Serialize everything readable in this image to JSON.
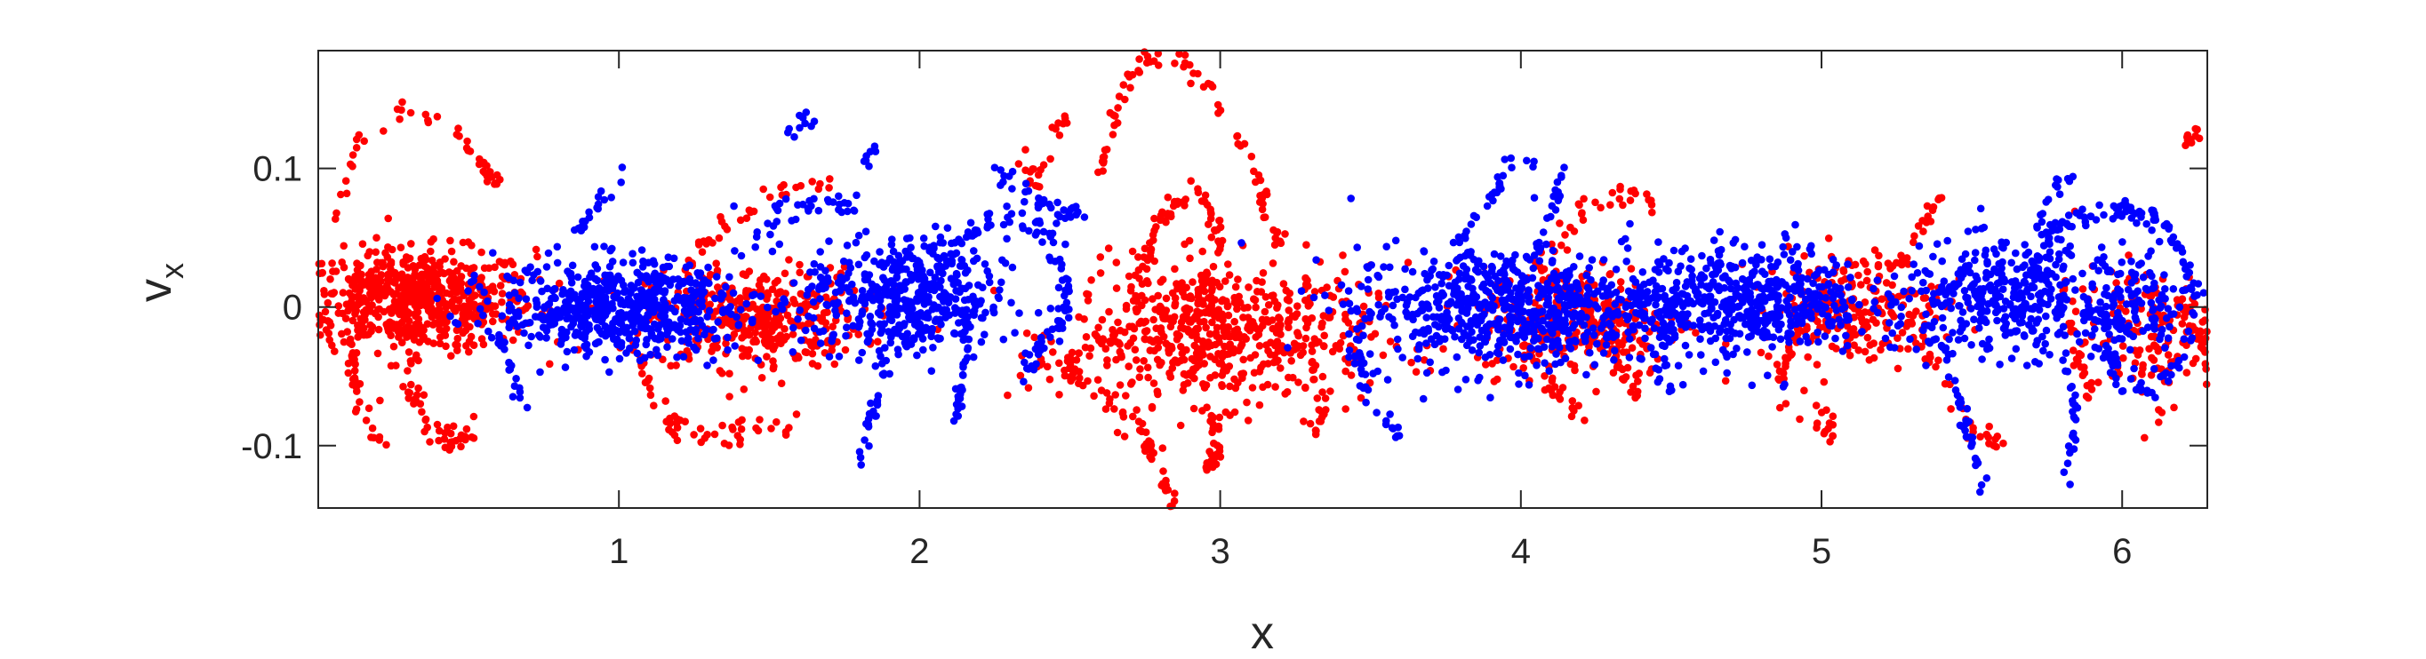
{
  "chart_data": {
    "type": "scatter",
    "xlabel": "x",
    "ylabel_main": "v",
    "ylabel_sub": "x",
    "xlim": [
      0,
      6.2832
    ],
    "ylim": [
      -0.145,
      0.185
    ],
    "xticks": [
      1,
      2,
      3,
      4,
      5,
      6
    ],
    "yticks": [
      -0.1,
      0,
      0.1
    ],
    "xtick_labels": [
      "1",
      "2",
      "3",
      "4",
      "5",
      "6"
    ],
    "ytick_labels": [
      "-0.1",
      "0",
      "0.1"
    ],
    "grid": false,
    "box": true,
    "series": [
      {
        "color": "#ff0000",
        "clusters": [
          {
            "x": 0.32,
            "y": 0.005,
            "sx": 0.2,
            "sy": 0.018,
            "n": 650
          },
          {
            "x": 1.45,
            "y": -0.008,
            "sx": 0.18,
            "sy": 0.018,
            "n": 360
          },
          {
            "x": 3.0,
            "y": -0.02,
            "sx": 0.25,
            "sy": 0.025,
            "n": 560
          },
          {
            "x": 4.2,
            "y": -0.01,
            "sx": 0.17,
            "sy": 0.02,
            "n": 280
          },
          {
            "x": 5.1,
            "y": 0.0,
            "sx": 0.15,
            "sy": 0.02,
            "n": 220
          },
          {
            "x": 6.1,
            "y": -0.02,
            "sx": 0.13,
            "sy": 0.025,
            "n": 160
          }
        ],
        "curves": [
          {
            "points": [
              [
                0.05,
                0.06
              ],
              [
                0.15,
                0.13
              ],
              [
                0.3,
                0.143
              ],
              [
                0.45,
                0.13
              ],
              [
                0.55,
                0.1
              ],
              [
                0.6,
                0.085
              ]
            ],
            "n": 45,
            "jitter": 0.004
          },
          {
            "points": [
              [
                0.35,
                0.0
              ],
              [
                0.3,
                -0.05
              ],
              [
                0.35,
                -0.08
              ],
              [
                0.45,
                -0.1
              ],
              [
                0.55,
                -0.09
              ]
            ],
            "n": 55,
            "jitter": 0.006
          },
          {
            "points": [
              [
                0.1,
                -0.02
              ],
              [
                0.12,
                -0.06
              ],
              [
                0.2,
                -0.1
              ]
            ],
            "n": 25,
            "jitter": 0.005
          },
          {
            "points": [
              [
                1.05,
                -0.02
              ],
              [
                1.1,
                -0.06
              ],
              [
                1.2,
                -0.09
              ],
              [
                1.4,
                -0.09
              ],
              [
                1.6,
                -0.08
              ]
            ],
            "n": 55,
            "jitter": 0.005
          },
          {
            "points": [
              [
                1.2,
                0.02
              ],
              [
                1.35,
                0.06
              ],
              [
                1.55,
                0.085
              ],
              [
                1.7,
                0.09
              ]
            ],
            "n": 35,
            "jitter": 0.004
          },
          {
            "points": [
              [
                2.85,
                0.0
              ],
              [
                2.65,
                -0.02
              ],
              [
                2.5,
                -0.04
              ],
              [
                2.55,
                -0.06
              ]
            ],
            "n": 40,
            "jitter": 0.004
          },
          {
            "points": [
              [
                2.4,
                -0.04
              ],
              [
                2.6,
                -0.06
              ],
              [
                2.75,
                -0.09
              ],
              [
                2.8,
                -0.12
              ],
              [
                2.85,
                -0.145
              ]
            ],
            "n": 55,
            "jitter": 0.004
          },
          {
            "points": [
              [
                2.95,
                -0.07
              ],
              [
                3.0,
                -0.1
              ],
              [
                2.95,
                -0.12
              ]
            ],
            "n": 25,
            "jitter": 0.004
          },
          {
            "points": [
              [
                2.6,
                0.095
              ],
              [
                2.65,
                0.14
              ],
              [
                2.75,
                0.183
              ],
              [
                2.85,
                0.18
              ],
              [
                2.95,
                0.165
              ],
              [
                3.1,
                0.11
              ],
              [
                3.15,
                0.07
              ],
              [
                3.2,
                0.04
              ]
            ],
            "n": 85,
            "jitter": 0.004
          },
          {
            "points": [
              [
                2.7,
                0.0
              ],
              [
                2.75,
                0.03
              ],
              [
                2.8,
                0.06
              ],
              [
                2.85,
                0.077
              ],
              [
                2.95,
                0.078
              ],
              [
                3.0,
                0.05
              ],
              [
                2.95,
                0.02
              ],
              [
                2.85,
                -0.01
              ]
            ],
            "n": 85,
            "jitter": 0.005
          },
          {
            "points": [
              [
                2.4,
                0.09
              ],
              [
                2.35,
                0.1
              ],
              [
                2.45,
                0.105
              ]
            ],
            "n": 15,
            "jitter": 0.004
          },
          {
            "points": [
              [
                2.45,
                0.13
              ],
              [
                2.5,
                0.13
              ]
            ],
            "n": 8,
            "jitter": 0.003
          },
          {
            "points": [
              [
                3.3,
                -0.04
              ],
              [
                3.35,
                -0.07
              ],
              [
                3.3,
                -0.09
              ]
            ],
            "n": 20,
            "jitter": 0.004
          },
          {
            "points": [
              [
                3.9,
                0.0
              ],
              [
                4.05,
                0.03
              ],
              [
                4.2,
                0.07
              ],
              [
                4.35,
                0.085
              ],
              [
                4.45,
                0.07
              ]
            ],
            "n": 45,
            "jitter": 0.005
          },
          {
            "points": [
              [
                4.0,
                -0.02
              ],
              [
                4.1,
                -0.06
              ],
              [
                4.2,
                -0.075
              ]
            ],
            "n": 25,
            "jitter": 0.004
          },
          {
            "points": [
              [
                4.3,
                -0.03
              ],
              [
                4.35,
                -0.05
              ],
              [
                4.4,
                -0.06
              ]
            ],
            "n": 20,
            "jitter": 0.004
          },
          {
            "points": [
              [
                5.0,
                0.01
              ],
              [
                4.9,
                -0.03
              ],
              [
                4.85,
                -0.06
              ],
              [
                4.95,
                -0.08
              ],
              [
                5.05,
                -0.09
              ]
            ],
            "n": 45,
            "jitter": 0.005
          },
          {
            "points": [
              [
                5.2,
                0.02
              ],
              [
                5.3,
                0.05
              ],
              [
                5.4,
                0.08
              ]
            ],
            "n": 25,
            "jitter": 0.004
          },
          {
            "points": [
              [
                5.3,
                -0.02
              ],
              [
                5.4,
                -0.05
              ],
              [
                5.5,
                -0.09
              ],
              [
                5.6,
                -0.1
              ]
            ],
            "n": 30,
            "jitter": 0.005
          },
          {
            "points": [
              [
                5.8,
                0.02
              ],
              [
                5.85,
                -0.03
              ],
              [
                5.9,
                -0.07
              ]
            ],
            "n": 25,
            "jitter": 0.004
          },
          {
            "points": [
              [
                6.15,
                0.1
              ],
              [
                6.22,
                0.12
              ],
              [
                6.25,
                0.125
              ]
            ],
            "n": 12,
            "jitter": 0.003
          },
          {
            "points": [
              [
                6.2,
                0.0
              ],
              [
                6.25,
                -0.02
              ],
              [
                6.28,
                -0.03
              ]
            ],
            "n": 15,
            "jitter": 0.004
          }
        ]
      },
      {
        "color": "#0000ff",
        "clusters": [
          {
            "x": 1.0,
            "y": 0.0,
            "sx": 0.2,
            "sy": 0.017,
            "n": 600
          },
          {
            "x": 1.95,
            "y": 0.005,
            "sx": 0.17,
            "sy": 0.022,
            "n": 450
          },
          {
            "x": 3.95,
            "y": 0.0,
            "sx": 0.26,
            "sy": 0.022,
            "n": 650
          },
          {
            "x": 4.75,
            "y": 0.005,
            "sx": 0.2,
            "sy": 0.02,
            "n": 500
          },
          {
            "x": 5.6,
            "y": 0.005,
            "sx": 0.17,
            "sy": 0.02,
            "n": 340
          },
          {
            "x": 6.0,
            "y": 0.0,
            "sx": 0.12,
            "sy": 0.02,
            "n": 160
          }
        ],
        "curves": [
          {
            "points": [
              [
                2.0,
                0.02
              ],
              [
                2.15,
                0.05
              ],
              [
                2.3,
                0.065
              ],
              [
                2.45,
                0.05
              ],
              [
                2.5,
                0.0
              ],
              [
                2.4,
                -0.03
              ],
              [
                2.35,
                -0.05
              ]
            ],
            "n": 110,
            "jitter": 0.005
          },
          {
            "points": [
              [
                2.15,
                0.0
              ],
              [
                2.15,
                -0.04
              ],
              [
                2.12,
                -0.08
              ]
            ],
            "n": 35,
            "jitter": 0.004
          },
          {
            "points": [
              [
                1.9,
                -0.03
              ],
              [
                1.85,
                -0.07
              ],
              [
                1.8,
                -0.11
              ]
            ],
            "n": 25,
            "jitter": 0.004
          },
          {
            "points": [
              [
                2.25,
                0.1
              ],
              [
                2.35,
                0.08
              ],
              [
                2.45,
                0.07
              ],
              [
                2.55,
                0.07
              ]
            ],
            "n": 35,
            "jitter": 0.004
          },
          {
            "points": [
              [
                1.45,
                0.05
              ],
              [
                1.55,
                0.07
              ],
              [
                1.7,
                0.075
              ],
              [
                1.8,
                0.07
              ]
            ],
            "n": 35,
            "jitter": 0.004
          },
          {
            "points": [
              [
                1.55,
                0.12
              ],
              [
                1.6,
                0.14
              ],
              [
                1.65,
                0.13
              ]
            ],
            "n": 10,
            "jitter": 0.004
          },
          {
            "points": [
              [
                1.8,
                0.1
              ],
              [
                1.85,
                0.115
              ]
            ],
            "n": 8,
            "jitter": 0.003
          },
          {
            "points": [
              [
                0.85,
                0.05
              ],
              [
                0.95,
                0.08
              ],
              [
                1.05,
                0.1
              ]
            ],
            "n": 20,
            "jitter": 0.005
          },
          {
            "points": [
              [
                0.6,
                -0.02
              ],
              [
                0.65,
                -0.05
              ],
              [
                0.7,
                -0.07
              ]
            ],
            "n": 20,
            "jitter": 0.004
          },
          {
            "points": [
              [
                3.45,
                0.0
              ],
              [
                3.45,
                -0.04
              ],
              [
                3.5,
                -0.07
              ],
              [
                3.6,
                -0.09
              ]
            ],
            "n": 30,
            "jitter": 0.005
          },
          {
            "points": [
              [
                3.8,
                0.05
              ],
              [
                3.9,
                0.08
              ],
              [
                3.95,
                0.1
              ],
              [
                4.05,
                0.105
              ]
            ],
            "n": 25,
            "jitter": 0.004
          },
          {
            "points": [
              [
                4.05,
                0.03
              ],
              [
                4.1,
                0.07
              ],
              [
                4.15,
                0.1
              ]
            ],
            "n": 20,
            "jitter": 0.004
          },
          {
            "points": [
              [
                4.5,
                0.0
              ],
              [
                4.45,
                -0.04
              ],
              [
                4.5,
                -0.07
              ]
            ],
            "n": 20,
            "jitter": 0.004
          },
          {
            "points": [
              [
                5.4,
                -0.02
              ],
              [
                5.45,
                -0.06
              ],
              [
                5.5,
                -0.1
              ],
              [
                5.55,
                -0.14
              ]
            ],
            "n": 35,
            "jitter": 0.004
          },
          {
            "points": [
              [
                5.7,
                0.02
              ],
              [
                5.75,
                0.05
              ],
              [
                5.85,
                0.065
              ],
              [
                6.0,
                0.07
              ],
              [
                6.1,
                0.065
              ],
              [
                6.2,
                0.04
              ],
              [
                6.25,
                0.0
              ],
              [
                6.2,
                -0.04
              ],
              [
                6.1,
                -0.06
              ],
              [
                6.0,
                -0.06
              ],
              [
                5.95,
                -0.03
              ]
            ],
            "n": 150,
            "jitter": 0.004
          },
          {
            "points": [
              [
                5.8,
                -0.03
              ],
              [
                5.85,
                -0.08
              ],
              [
                5.8,
                -0.13
              ]
            ],
            "n": 25,
            "jitter": 0.004
          },
          {
            "points": [
              [
                5.7,
                0.05
              ],
              [
                5.75,
                0.08
              ],
              [
                5.85,
                0.09
              ]
            ],
            "n": 15,
            "jitter": 0.004
          }
        ]
      }
    ]
  }
}
